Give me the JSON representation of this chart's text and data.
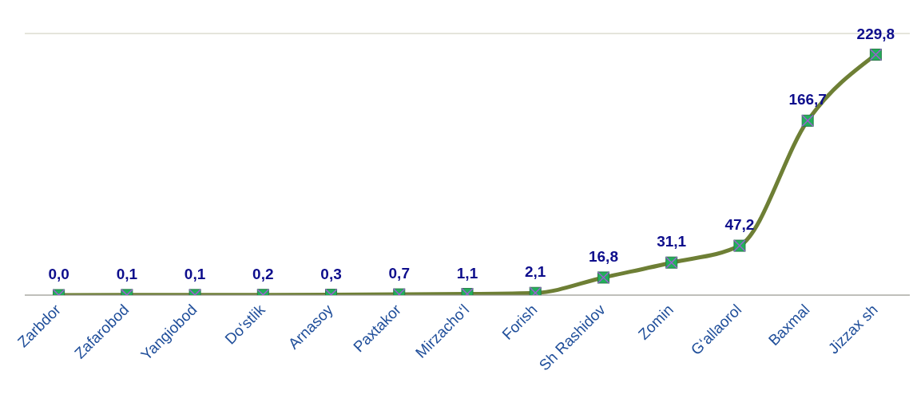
{
  "chart_data": {
    "type": "line",
    "categories": [
      "Zarbdor",
      "Zafarobod",
      "Yangiobod",
      "Do‘stlik",
      "Arnasoy",
      "Paxtakor",
      "Mirzacho‘l",
      "Forish",
      "Sh Rashidov",
      "Zomin",
      "G‘allaorol",
      "Baxmal",
      "Jizzax sh"
    ],
    "series": [
      {
        "color": "#6e7f35",
        "values": [
          0.0,
          0.1,
          0.1,
          0.2,
          0.3,
          0.7,
          1.1,
          2.1,
          16.8,
          31.1,
          47.2,
          166.7,
          229.8
        ],
        "value_labels": [
          "0,0",
          "0,1",
          "0,1",
          "0,2",
          "0,3",
          "0,7",
          "1,1",
          "2,1",
          "16,8",
          "31,1",
          "47,2",
          "166,7",
          "229,8"
        ]
      }
    ],
    "ylim": [
      0,
      250
    ],
    "tick_labels": "x",
    "grid": "y",
    "marker": "square",
    "line_style": "solid",
    "legend": false
  }
}
